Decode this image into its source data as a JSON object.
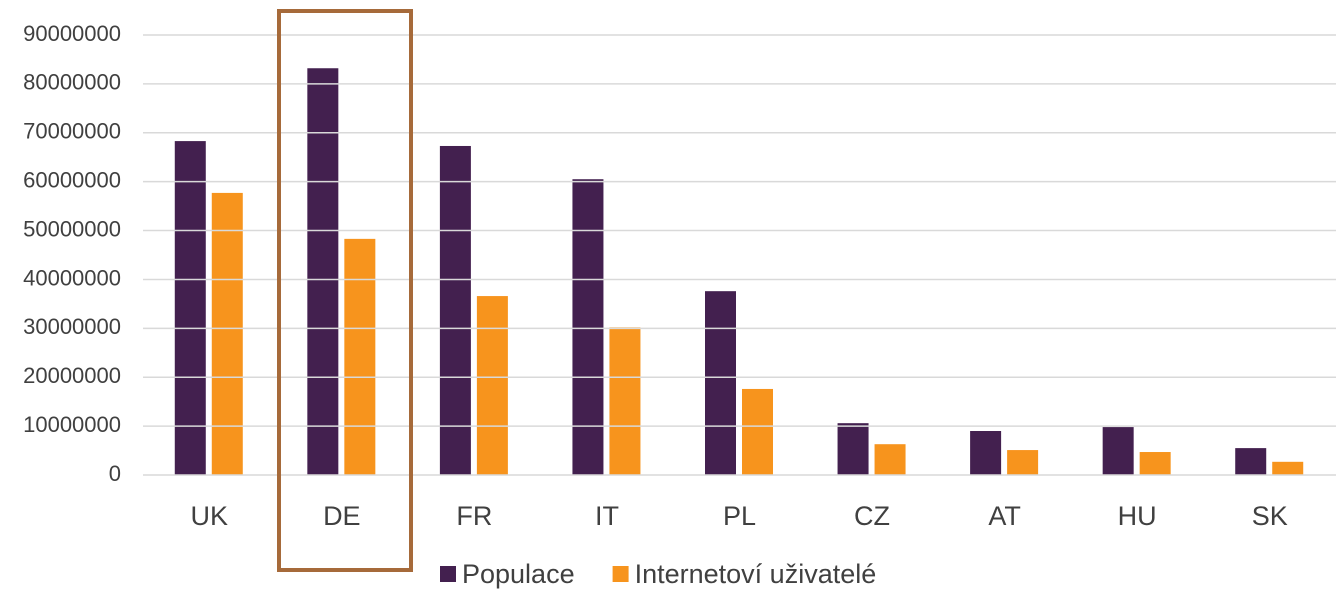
{
  "chart_data": {
    "type": "bar",
    "categories": [
      "UK",
      "DE",
      "FR",
      "IT",
      "PL",
      "CZ",
      "AT",
      "HU",
      "SK"
    ],
    "series": [
      {
        "name": "Populace",
        "color": "#43204f",
        "values": [
          68300000,
          83200000,
          67300000,
          60500000,
          37600000,
          10600000,
          9000000,
          9800000,
          5500000
        ]
      },
      {
        "name": "Internetoví uživatelé",
        "color": "#f7941d",
        "values": [
          57700000,
          48300000,
          36600000,
          30200000,
          17600000,
          6300000,
          5100000,
          4700000,
          2700000
        ]
      }
    ],
    "ylim": [
      0,
      90000000
    ],
    "yticks": [
      0,
      10000000,
      20000000,
      30000000,
      40000000,
      50000000,
      60000000,
      70000000,
      80000000,
      90000000
    ],
    "grid": true,
    "legend": "bottom"
  }
}
